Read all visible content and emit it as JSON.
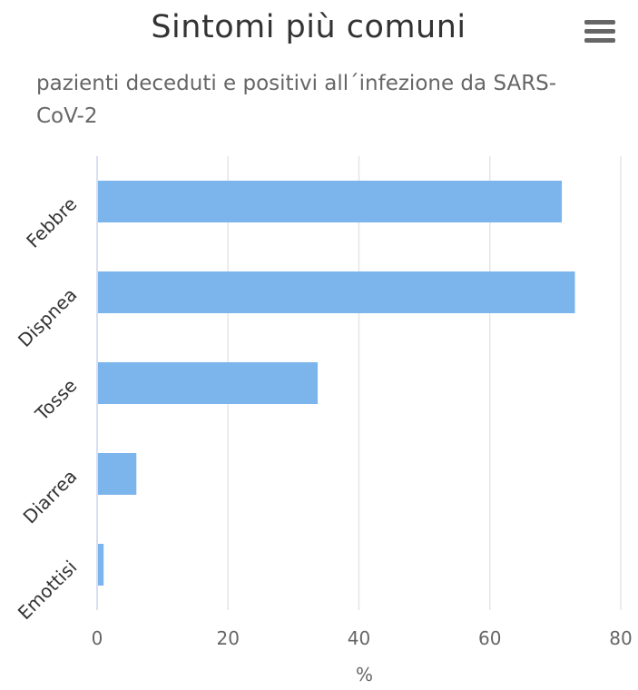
{
  "chart_data": {
    "type": "bar",
    "orientation": "horizontal",
    "title": "Sintomi più comuni",
    "subtitle": "pazienti deceduti e positivi all´infezione da SARS-CoV-2",
    "categories": [
      "Febbre",
      "Dispnea",
      "Tosse",
      "Diarrea",
      "Emottisi"
    ],
    "values": [
      71,
      73,
      33.7,
      6,
      1
    ],
    "xlabel": "%",
    "xlim": [
      0,
      80
    ],
    "xticks": [
      0,
      20,
      40,
      60,
      80
    ],
    "grid": true,
    "bar_color": "#7cb5ec"
  },
  "menu": {
    "icon": "hamburger-menu-icon"
  }
}
